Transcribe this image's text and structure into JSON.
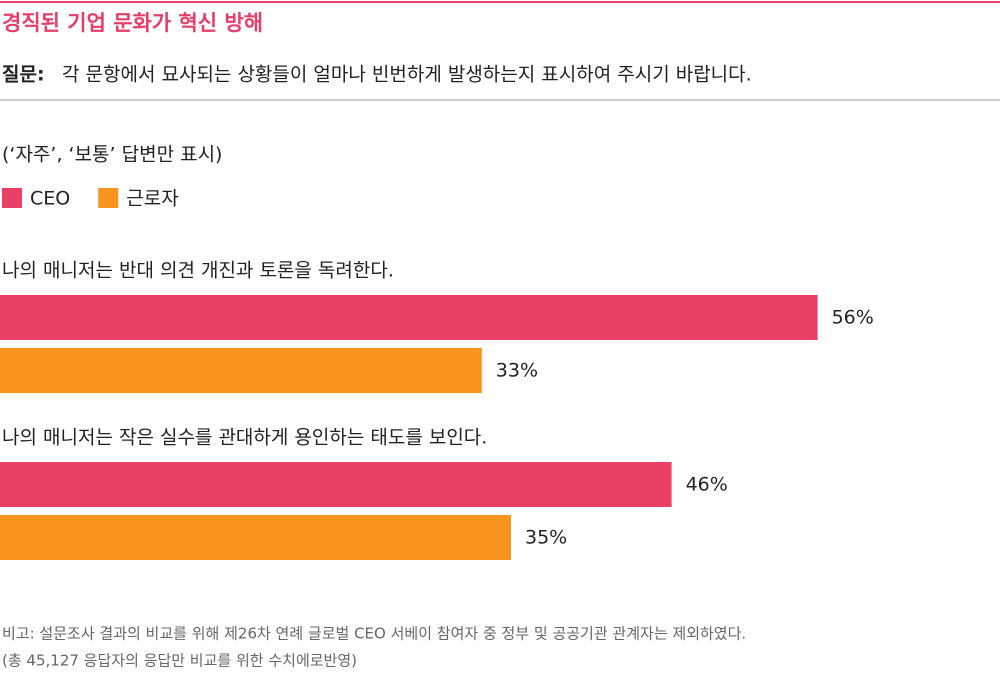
{
  "chart_data": {
    "type": "bar",
    "orientation": "horizontal",
    "title": "경직된 기업 문화가 혁신 방해",
    "question_label": "질문:",
    "subtitle": "각 문항에서 묘사되는 상황들이 얼마나 빈번하게 발생하는지 표시하여 주시기 바랍니다.",
    "note": "(‘자주’, ‘보통’ 답변만 표시)",
    "categories": [
      "나의 매니저는 반대 의견 개진과 토론을 독려한다.",
      "나의 매니저는 작은 실수를 관대하게 용인하는 태도를 보인다."
    ],
    "series": [
      {
        "name": "CEO",
        "color": "#e94068",
        "values": [
          56,
          46
        ],
        "value_labels": [
          "56%",
          "46%"
        ]
      },
      {
        "name": "근로자",
        "color": "#f7941d",
        "values": [
          33,
          35
        ],
        "value_labels": [
          "33%",
          "35%"
        ]
      }
    ],
    "footnotes": [
      "비고: 설문조사 결과의 비교를 위해 제26차 연례 글로벌 CEO 서베이 참여자 중 정부 및 공공기관 관계자는 제외하였다.",
      "(총 45,127 응답자의 응답만 비교를 위한 수치에로반영)"
    ]
  }
}
